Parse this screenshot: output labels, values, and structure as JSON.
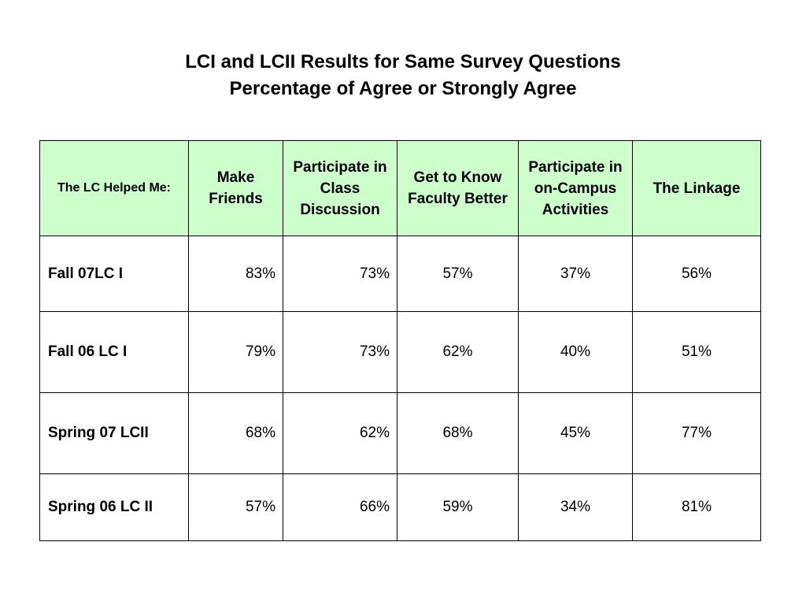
{
  "title": {
    "line1": "LCI and LCII Results for Same Survey Questions",
    "line2": "Percentage of Agree or Strongly Agree"
  },
  "table": {
    "corner_label": "The LC Helped Me:",
    "columns": [
      "Make Friends",
      "Participate in Class Discussion",
      "Get to Know Faculty Better",
      "Participate in on-Campus Activities",
      "The Linkage"
    ],
    "rows": [
      {
        "label": "Fall 07LC I",
        "values": [
          "83%",
          "73%",
          "57%",
          "37%",
          "56%"
        ]
      },
      {
        "label": "Fall 06 LC I",
        "values": [
          "79%",
          "73%",
          "62%",
          "40%",
          "51%"
        ]
      },
      {
        "label": "Spring 07 LCII",
        "values": [
          "68%",
          "62%",
          "68%",
          "45%",
          "77%"
        ]
      },
      {
        "label": "Spring 06 LC II",
        "values": [
          "57%",
          "66%",
          "59%",
          "34%",
          "81%"
        ]
      }
    ],
    "header_color": "#ccffcc"
  }
}
